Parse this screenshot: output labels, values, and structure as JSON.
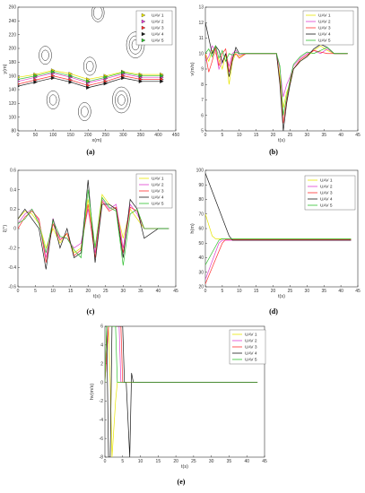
{
  "legend_labels": [
    "UAV 1",
    "UAV 2",
    "UAV 3",
    "UAV 4",
    "UAV 5"
  ],
  "colors": [
    "#e8e600",
    "#e040d0",
    "#ff3030",
    "#1a1a1a",
    "#30c030"
  ],
  "chart_data": [
    {
      "id": "a",
      "caption": "(a)",
      "type": "line",
      "xlabel": "x(m)",
      "ylabel": "y(m)",
      "xlim": [
        0,
        450
      ],
      "ylim": [
        80,
        260
      ],
      "xticks": [
        0,
        50,
        100,
        150,
        200,
        250,
        300,
        350,
        400,
        450
      ],
      "yticks": [
        80,
        100,
        120,
        140,
        160,
        180,
        200,
        220,
        240,
        260
      ],
      "grid": false,
      "legend": "top-right",
      "obstacles": [
        {
          "x": 228,
          "y": 252,
          "r": [
            7,
            5
          ]
        },
        {
          "x": 335,
          "y": 205,
          "r": [
            10,
            7,
            4
          ]
        },
        {
          "x": 78,
          "y": 190,
          "r": [
            7,
            4
          ]
        },
        {
          "x": 205,
          "y": 174,
          "r": [
            7,
            4
          ]
        },
        {
          "x": 100,
          "y": 125,
          "r": [
            7,
            4
          ]
        },
        {
          "x": 190,
          "y": 108,
          "r": [
            7,
            4
          ]
        },
        {
          "x": 295,
          "y": 125,
          "r": [
            10,
            7,
            4
          ]
        }
      ],
      "series": [
        {
          "name": "UAV 1",
          "x": [
            0,
            50,
            100,
            150,
            200,
            250,
            300,
            350,
            410
          ],
          "y": [
            158,
            162,
            168,
            163,
            155,
            160,
            166,
            162,
            162
          ]
        },
        {
          "name": "UAV 2",
          "x": [
            0,
            50,
            100,
            150,
            200,
            250,
            300,
            350,
            410
          ],
          "y": [
            152,
            158,
            164,
            158,
            150,
            156,
            163,
            158,
            158
          ]
        },
        {
          "name": "UAV 3",
          "x": [
            0,
            50,
            100,
            150,
            200,
            250,
            300,
            350,
            410
          ],
          "y": [
            148,
            154,
            160,
            154,
            146,
            152,
            160,
            155,
            155
          ]
        },
        {
          "name": "UAV 4",
          "x": [
            0,
            50,
            100,
            150,
            200,
            250,
            300,
            350,
            410
          ],
          "y": [
            145,
            151,
            157,
            151,
            143,
            149,
            157,
            152,
            152
          ]
        },
        {
          "name": "UAV 5",
          "x": [
            0,
            50,
            100,
            150,
            200,
            250,
            300,
            350,
            410
          ],
          "y": [
            155,
            160,
            166,
            160,
            152,
            158,
            165,
            160,
            160
          ]
        }
      ]
    },
    {
      "id": "b",
      "caption": "(b)",
      "type": "line",
      "xlabel": "t(s)",
      "ylabel": "v(m/s)",
      "xlim": [
        0,
        45
      ],
      "ylim": [
        5,
        13
      ],
      "xticks": [
        0,
        5,
        10,
        15,
        20,
        25,
        30,
        35,
        40,
        45
      ],
      "yticks": [
        5,
        6,
        7,
        8,
        9,
        10,
        11,
        12,
        13
      ],
      "grid": false,
      "legend": "top-right",
      "series": [
        {
          "name": "UAV 1",
          "x": [
            0,
            1,
            2,
            3,
            4,
            5,
            6,
            7,
            8,
            9,
            10,
            12,
            15,
            18,
            20,
            21,
            22,
            23,
            24,
            25,
            26,
            28,
            30,
            32,
            34,
            36,
            38,
            40,
            42
          ],
          "y": [
            10,
            9.5,
            10.2,
            10,
            9.6,
            9,
            10,
            8,
            9.5,
            10,
            9.8,
            10,
            10,
            10,
            10,
            10,
            8.5,
            6.5,
            7.5,
            8,
            9,
            9.5,
            9.8,
            10.2,
            10.5,
            10.2,
            10,
            10,
            10
          ]
        },
        {
          "name": "UAV 2",
          "x": [
            0,
            1,
            2,
            3,
            4,
            5,
            6,
            7,
            8,
            9,
            10,
            12,
            15,
            18,
            20,
            21,
            22,
            23,
            24,
            25,
            26,
            28,
            30,
            32,
            34,
            36,
            38,
            40,
            42
          ],
          "y": [
            9.5,
            9.8,
            10.5,
            10.2,
            9,
            9.5,
            10,
            9.2,
            10,
            10.2,
            9.9,
            10,
            10,
            10,
            10,
            10,
            9,
            7.2,
            8,
            8.5,
            9.2,
            9.7,
            10,
            10.2,
            10,
            10.3,
            10,
            10,
            10
          ]
        },
        {
          "name": "UAV 3",
          "x": [
            0,
            1,
            2,
            3,
            4,
            5,
            6,
            7,
            8,
            9,
            10,
            12,
            15,
            18,
            20,
            21,
            22,
            23,
            24,
            25,
            26,
            28,
            30,
            32,
            34,
            36,
            38,
            40,
            42
          ],
          "y": [
            10,
            8.8,
            9.5,
            10.4,
            9.2,
            10,
            10.3,
            8.8,
            9.8,
            10,
            9.7,
            10,
            10,
            10,
            10,
            10,
            8.2,
            5.5,
            7,
            8.2,
            9,
            9.6,
            9.9,
            10.2,
            10.1,
            10,
            10,
            10,
            10
          ]
        },
        {
          "name": "UAV 4",
          "x": [
            0,
            1,
            2,
            3,
            4,
            5,
            6,
            7,
            8,
            9,
            10,
            12,
            15,
            18,
            20,
            21,
            22,
            23,
            24,
            25,
            26,
            28,
            30,
            32,
            34,
            36,
            38,
            40,
            42
          ],
          "y": [
            12,
            11,
            10,
            10.5,
            10.2,
            9.4,
            10,
            8.5,
            9.6,
            10.4,
            10,
            10,
            10,
            10,
            10,
            10,
            8,
            5,
            6.8,
            8,
            9,
            9.5,
            9.8,
            10.3,
            10.6,
            10.4,
            10,
            10,
            10
          ]
        },
        {
          "name": "UAV 5",
          "x": [
            0,
            1,
            2,
            3,
            4,
            5,
            6,
            7,
            8,
            9,
            10,
            12,
            15,
            18,
            20,
            21,
            22,
            23,
            24,
            25,
            26,
            28,
            30,
            32,
            34,
            36,
            38,
            40,
            42
          ],
          "y": [
            10,
            10.3,
            9.8,
            10.5,
            9.7,
            10.2,
            9.5,
            10,
            9.9,
            10.1,
            10,
            10,
            10,
            10,
            10,
            10,
            9.2,
            6,
            7.2,
            8.3,
            9.3,
            9.8,
            10.1,
            10,
            10.2,
            10.4,
            10,
            10,
            10
          ]
        }
      ]
    },
    {
      "id": "c",
      "caption": "(c)",
      "type": "line",
      "xlabel": "t(s)",
      "ylabel": "ξ(°)",
      "xlim": [
        0,
        45
      ],
      "ylim": [
        -0.6,
        0.6
      ],
      "xticks": [
        0,
        5,
        10,
        15,
        20,
        25,
        30,
        35,
        40,
        45
      ],
      "yticks": [
        -0.6,
        -0.4,
        -0.2,
        0,
        0.2,
        0.4,
        0.6
      ],
      "grid": false,
      "legend": "top-right",
      "series": [
        {
          "name": "UAV 1",
          "x": [
            0,
            2,
            4,
            6,
            8,
            10,
            12,
            14,
            16,
            18,
            20,
            22,
            24,
            26,
            28,
            30,
            32,
            34,
            36,
            40,
            43
          ],
          "y": [
            0.1,
            0.18,
            0.15,
            0.05,
            -0.2,
            0,
            -0.15,
            -0.05,
            -0.25,
            -0.2,
            0.3,
            -0.2,
            0.35,
            0.25,
            0.2,
            -0.1,
            0.2,
            0.1,
            0,
            0,
            0
          ]
        },
        {
          "name": "UAV 2",
          "x": [
            0,
            2,
            4,
            6,
            8,
            10,
            12,
            14,
            16,
            18,
            20,
            22,
            24,
            26,
            28,
            30,
            32,
            34,
            36,
            40,
            43
          ],
          "y": [
            0.05,
            0.15,
            0.2,
            0.08,
            -0.3,
            0.1,
            -0.1,
            -0.1,
            -0.2,
            -0.15,
            0.2,
            -0.25,
            0.3,
            0.2,
            0.25,
            -0.2,
            0.25,
            0.15,
            0,
            0,
            0
          ]
        },
        {
          "name": "UAV 3",
          "x": [
            0,
            2,
            4,
            6,
            8,
            10,
            12,
            14,
            16,
            18,
            20,
            22,
            24,
            26,
            28,
            30,
            32,
            34,
            36,
            40,
            43
          ],
          "y": [
            0,
            0.12,
            0.18,
            0.1,
            -0.35,
            0.05,
            -0.12,
            -0.05,
            -0.28,
            -0.22,
            0.25,
            -0.3,
            0.28,
            0.18,
            0.22,
            -0.25,
            0.22,
            0.18,
            0,
            0,
            0
          ]
        },
        {
          "name": "UAV 4",
          "x": [
            0,
            2,
            4,
            6,
            8,
            10,
            12,
            14,
            16,
            18,
            20,
            22,
            24,
            26,
            28,
            30,
            32,
            34,
            36,
            40,
            43
          ],
          "y": [
            0.1,
            0.2,
            0.1,
            0,
            -0.42,
            0.1,
            -0.2,
            0,
            -0.3,
            -0.25,
            0.5,
            -0.35,
            0.25,
            0.25,
            0.2,
            -0.3,
            0.3,
            0.2,
            -0.1,
            0,
            0
          ]
        },
        {
          "name": "UAV 5",
          "x": [
            0,
            2,
            4,
            6,
            8,
            10,
            12,
            14,
            16,
            18,
            20,
            22,
            24,
            26,
            28,
            30,
            32,
            34,
            36,
            40,
            43
          ],
          "y": [
            0.05,
            0.1,
            0.2,
            0.05,
            -0.25,
            0.08,
            -0.08,
            -0.1,
            -0.22,
            -0.3,
            0.4,
            -0.2,
            0.32,
            0.22,
            0.18,
            -0.38,
            0.15,
            0.2,
            0,
            0,
            0
          ]
        }
      ]
    },
    {
      "id": "d",
      "caption": "(d)",
      "type": "line",
      "xlabel": "t(s)",
      "ylabel": "h(m)",
      "xlim": [
        0,
        45
      ],
      "ylim": [
        20,
        100
      ],
      "xticks": [
        0,
        5,
        10,
        15,
        20,
        25,
        30,
        35,
        40,
        45
      ],
      "yticks": [
        20,
        30,
        40,
        50,
        60,
        70,
        80,
        90,
        100
      ],
      "grid": false,
      "legend": "top-right",
      "series": [
        {
          "name": "UAV 1",
          "x": [
            0,
            2,
            3,
            43
          ],
          "y": [
            70,
            55,
            53,
            53
          ]
        },
        {
          "name": "UAV 2",
          "x": [
            0,
            4,
            5,
            43
          ],
          "y": [
            25,
            50,
            52,
            52
          ]
        },
        {
          "name": "UAV 3",
          "x": [
            0,
            5,
            6,
            43
          ],
          "y": [
            22,
            50,
            52.5,
            52.5
          ]
        },
        {
          "name": "UAV 4",
          "x": [
            0,
            7,
            8,
            43
          ],
          "y": [
            98,
            55,
            52,
            52
          ]
        },
        {
          "name": "UAV 5",
          "x": [
            0,
            4,
            5,
            43
          ],
          "y": [
            35,
            52,
            53,
            53
          ]
        }
      ]
    },
    {
      "id": "e",
      "caption": "(e)",
      "type": "line",
      "xlabel": "t(s)",
      "ylabel": "hv(m/s)",
      "xlim": [
        0,
        45
      ],
      "ylim": [
        -8,
        6
      ],
      "xticks": [
        0,
        5,
        10,
        15,
        20,
        25,
        30,
        35,
        40,
        45
      ],
      "yticks": [
        -8,
        -6,
        -4,
        -2,
        0,
        2,
        4,
        6
      ],
      "grid": false,
      "legend": "top-right",
      "series": [
        {
          "name": "UAV 1",
          "x": [
            0,
            0.5,
            1,
            1.5,
            2,
            3,
            3.5,
            43
          ],
          "y": [
            0,
            6,
            6,
            0,
            -8,
            -2,
            0,
            0
          ]
        },
        {
          "name": "UAV 2",
          "x": [
            0,
            1,
            1.5,
            4,
            4.5,
            5,
            43
          ],
          "y": [
            0,
            6,
            6,
            6,
            0,
            0,
            0
          ]
        },
        {
          "name": "UAV 3",
          "x": [
            0,
            1,
            1.5,
            4.5,
            5,
            5.5,
            43
          ],
          "y": [
            0,
            6,
            6,
            6,
            0,
            0,
            0
          ]
        },
        {
          "name": "UAV 4",
          "x": [
            0,
            0.5,
            1,
            1.5,
            2,
            5,
            5.5,
            6,
            7,
            7.5,
            8,
            8.5,
            43
          ],
          "y": [
            6,
            6,
            -8,
            -8,
            6,
            6,
            0,
            0,
            -8,
            1,
            0,
            0,
            0
          ]
        },
        {
          "name": "UAV 5",
          "x": [
            0,
            0.5,
            1,
            3,
            3.5,
            4,
            43
          ],
          "y": [
            0,
            6,
            6,
            6,
            0,
            0,
            0
          ]
        }
      ]
    }
  ]
}
